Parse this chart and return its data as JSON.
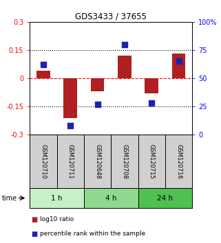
{
  "title": "GDS3433 / 37655",
  "samples": [
    "GSM120710",
    "GSM120711",
    "GSM120648",
    "GSM120708",
    "GSM120715",
    "GSM120716"
  ],
  "log10_ratio": [
    0.04,
    -0.21,
    -0.07,
    0.12,
    -0.08,
    0.13
  ],
  "percentile_rank": [
    62,
    8,
    27,
    80,
    28,
    65
  ],
  "time_groups": [
    {
      "label": "1 h",
      "cols": [
        0,
        1
      ],
      "color": "#c8f0c8"
    },
    {
      "label": "4 h",
      "cols": [
        2,
        3
      ],
      "color": "#90d890"
    },
    {
      "label": "24 h",
      "cols": [
        4,
        5
      ],
      "color": "#50c050"
    }
  ],
  "bar_color": "#b02020",
  "square_color": "#2020b0",
  "ylim_left": [
    -0.3,
    0.3
  ],
  "ylim_right": [
    0,
    100
  ],
  "yticks_left": [
    -0.3,
    -0.15,
    0.0,
    0.15,
    0.3
  ],
  "yticks_right": [
    0,
    25,
    50,
    75,
    100
  ],
  "ytick_labels_left": [
    "-0.3",
    "-0.15",
    "0",
    "0.15",
    "0.3"
  ],
  "ytick_labels_right": [
    "0",
    "25",
    "50",
    "75",
    "100%"
  ],
  "hlines": [
    -0.15,
    0.0,
    0.15
  ],
  "hline_styles": [
    "dotted",
    "dashed",
    "dotted"
  ],
  "hline_colors": [
    "black",
    "red",
    "black"
  ],
  "bar_width": 0.5,
  "square_size": 30,
  "legend_items": [
    {
      "label": "log10 ratio",
      "color": "#b02020"
    },
    {
      "label": "percentile rank within the sample",
      "color": "#2020b0"
    }
  ]
}
